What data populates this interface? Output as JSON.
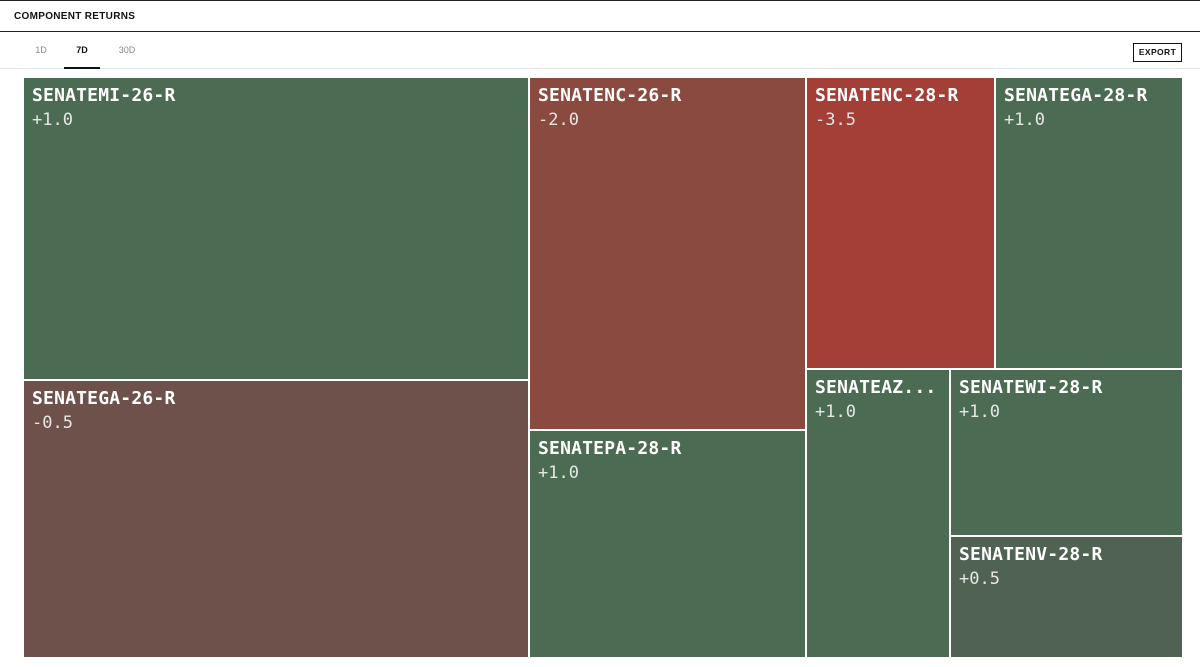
{
  "header": {
    "title": "COMPONENT RETURNS"
  },
  "tabs": [
    {
      "label": "1D",
      "active": false
    },
    {
      "label": "7D",
      "active": true
    },
    {
      "label": "30D",
      "active": false
    }
  ],
  "toolbar": {
    "export_label": "EXPORT"
  },
  "colors": {
    "positive": "#4c6b53",
    "positive_small": "#506352",
    "negative_mild": "#6e514a",
    "negative_med": "#8b4a3f",
    "negative_strong": "#a33f36"
  },
  "tiles": [
    {
      "name": "SENATEMI-26-R",
      "value": "+1.0"
    },
    {
      "name": "SENATEGA-26-R",
      "value": "-0.5"
    },
    {
      "name": "SENATENC-26-R",
      "value": "-2.0"
    },
    {
      "name": "SENATEPA-28-R",
      "value": "+1.0"
    },
    {
      "name": "SENATENC-28-R",
      "value": "-3.5"
    },
    {
      "name": "SENATEGA-28-R",
      "value": "+1.0"
    },
    {
      "name": "SENATEAZ...",
      "value": "+1.0"
    },
    {
      "name": "SENATEWI-28-R",
      "value": "+1.0"
    },
    {
      "name": "SENATENV-28-R",
      "value": "+0.5"
    }
  ]
}
